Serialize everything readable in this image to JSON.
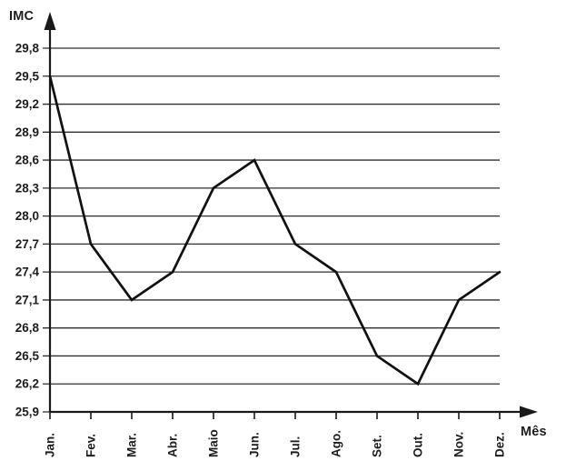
{
  "chart_data": {
    "type": "line",
    "title": "",
    "ylabel": "IMC",
    "xlabel": "Mês",
    "categories": [
      "Jan.",
      "Fev.",
      "Mar.",
      "Abr.",
      "Maio",
      "Jun.",
      "Jul.",
      "Ago.",
      "Set.",
      "Out.",
      "Nov.",
      "Dez."
    ],
    "series": [
      {
        "name": "IMC",
        "values": [
          29.5,
          27.7,
          27.1,
          27.4,
          28.3,
          28.6,
          27.7,
          27.4,
          26.5,
          26.2,
          27.1,
          27.4
        ]
      }
    ],
    "y_ticks": [
      {
        "label": "29,8",
        "value": 29.8
      },
      {
        "label": "29,5",
        "value": 29.5
      },
      {
        "label": "29,2",
        "value": 29.2
      },
      {
        "label": "28,9",
        "value": 28.9
      },
      {
        "label": "28,6",
        "value": 28.6
      },
      {
        "label": "28,3",
        "value": 28.3
      },
      {
        "label": "28,0",
        "value": 28.0
      },
      {
        "label": "27,7",
        "value": 27.7
      },
      {
        "label": "27,4",
        "value": 27.4
      },
      {
        "label": "27,1",
        "value": 27.1
      },
      {
        "label": "26,8",
        "value": 26.8
      },
      {
        "label": "26,5",
        "value": 26.5
      },
      {
        "label": "26,2",
        "value": 26.2
      },
      {
        "label": "25,9",
        "value": 25.9
      }
    ],
    "ylim": [
      25.9,
      29.8
    ],
    "y_step": 0.3,
    "grid": true,
    "legend_position": "none",
    "colors": {
      "line": "#111111",
      "grid": "#2e2e2e",
      "axis": "#1a1a1a",
      "text": "#1d1d1f",
      "background": "#ffffff"
    }
  }
}
